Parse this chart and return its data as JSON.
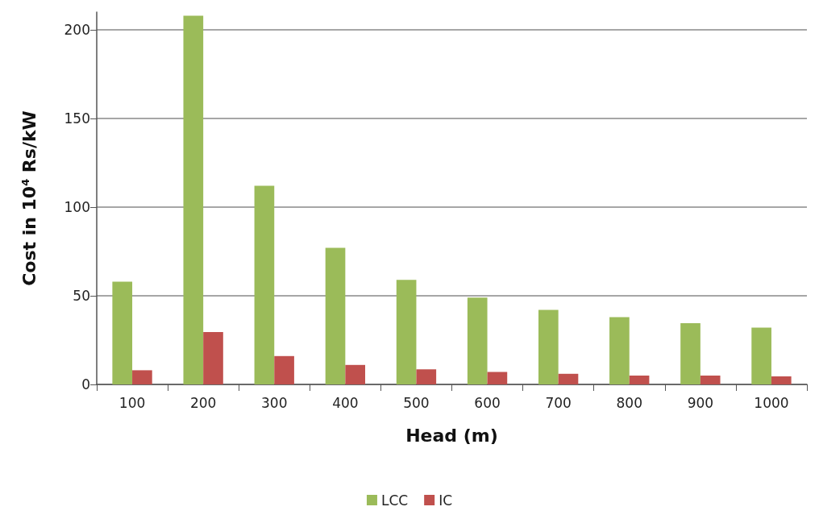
{
  "chart_data": {
    "type": "bar",
    "xlabel": "Head (m)",
    "ylabel": "Cost in 10$^{4}$ Rs/kW",
    "categories": [
      "100",
      "200",
      "300",
      "400",
      "500",
      "600",
      "700",
      "800",
      "900",
      "1000"
    ],
    "series": [
      {
        "name": "LCC",
        "color": "#9bbb59",
        "values": [
          58,
          208,
          112,
          77,
          59,
          49,
          42,
          38,
          34.5,
          32
        ]
      },
      {
        "name": "IC",
        "color": "#c0504d",
        "values": [
          8,
          29.5,
          16,
          11,
          8.5,
          7,
          6,
          5,
          5,
          4.5
        ]
      }
    ],
    "ylim": [
      0,
      210
    ],
    "yticks": [
      0,
      50,
      100,
      150,
      200
    ],
    "grid": "y",
    "legend": "bottom"
  }
}
